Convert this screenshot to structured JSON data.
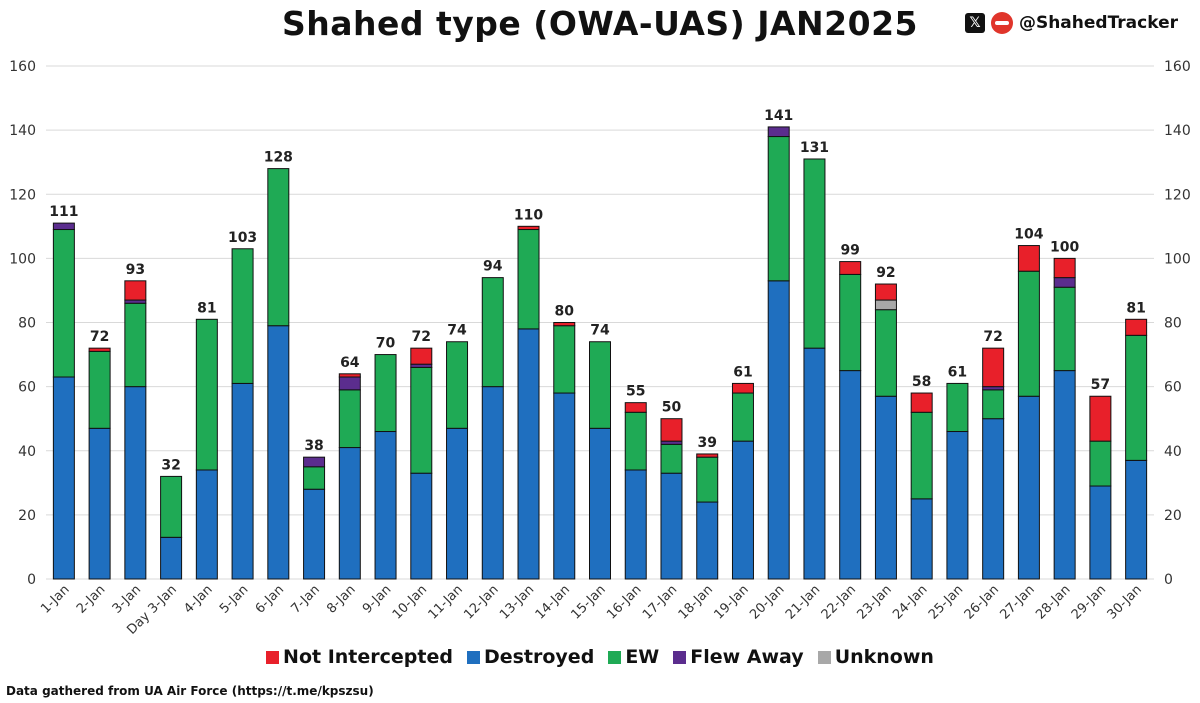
{
  "header": {
    "title": "Shahed type (OWA-UAS) JAN2025",
    "handle": "@ShahedTracker",
    "x_icon_glyph": "𝕏"
  },
  "source": "Data gathered from UA Air Force (https://t.me/kpszsu)",
  "chart_data": {
    "type": "bar",
    "stacked": true,
    "title": "Shahed type (OWA-UAS) JAN2025",
    "xlabel": "",
    "ylabel": "",
    "ylim": [
      0,
      160
    ],
    "yticks": [
      0,
      20,
      40,
      60,
      80,
      100,
      120,
      140,
      160
    ],
    "grid": true,
    "legend_position": "bottom",
    "categories": [
      "1-Jan",
      "2-Jan",
      "3-Jan",
      "Day 3-Jan",
      "4-Jan",
      "5-Jan",
      "6-Jan",
      "7-Jan",
      "8-Jan",
      "9-Jan",
      "10-Jan",
      "11-Jan",
      "12-Jan",
      "13-Jan",
      "14-Jan",
      "15-Jan",
      "16-Jan",
      "17-Jan",
      "18-Jan",
      "19-Jan",
      "20-Jan",
      "21-Jan",
      "22-Jan",
      "23-Jan",
      "24-Jan",
      "25-Jan",
      "26-Jan",
      "27-Jan",
      "28-Jan",
      "29-Jan",
      "30-Jan"
    ],
    "totals": [
      111,
      72,
      93,
      32,
      81,
      103,
      128,
      38,
      64,
      70,
      72,
      74,
      94,
      110,
      80,
      74,
      55,
      50,
      39,
      61,
      141,
      131,
      99,
      92,
      58,
      61,
      72,
      104,
      100,
      57,
      81
    ],
    "series": [
      {
        "name": "Destroyed",
        "color": "#1f6fbf",
        "values": [
          63,
          47,
          60,
          13,
          34,
          61,
          79,
          28,
          41,
          46,
          33,
          47,
          60,
          78,
          58,
          47,
          34,
          33,
          24,
          43,
          93,
          72,
          65,
          57,
          25,
          46,
          50,
          57,
          65,
          29,
          37
        ]
      },
      {
        "name": "EW",
        "color": "#1faa55",
        "values": [
          46,
          24,
          26,
          19,
          47,
          42,
          49,
          7,
          18,
          24,
          33,
          27,
          34,
          31,
          21,
          27,
          18,
          9,
          14,
          15,
          45,
          59,
          30,
          27,
          27,
          15,
          9,
          39,
          26,
          14,
          39
        ]
      },
      {
        "name": "Unknown",
        "color": "#a8a8a8",
        "values": [
          0,
          0,
          0,
          0,
          0,
          0,
          0,
          0,
          0,
          0,
          0,
          0,
          0,
          0,
          0,
          0,
          0,
          0,
          0,
          0,
          0,
          0,
          0,
          3,
          0,
          0,
          0,
          0,
          0,
          0,
          0
        ]
      },
      {
        "name": "Flew Away",
        "color": "#5b2d8e",
        "values": [
          2,
          0,
          1,
          0,
          0,
          0,
          0,
          3,
          4,
          0,
          1,
          0,
          0,
          0,
          0,
          0,
          0,
          1,
          0,
          0,
          3,
          0,
          0,
          0,
          0,
          0,
          1,
          0,
          3,
          0,
          0
        ]
      },
      {
        "name": "Not Intercepted",
        "color": "#e8202a",
        "values": [
          0,
          1,
          6,
          0,
          0,
          0,
          0,
          0,
          1,
          0,
          5,
          0,
          0,
          1,
          1,
          0,
          3,
          7,
          1,
          3,
          0,
          0,
          4,
          5,
          6,
          0,
          12,
          8,
          6,
          14,
          5
        ]
      }
    ]
  },
  "legend": [
    {
      "label": "Not Intercepted",
      "color": "#e8202a"
    },
    {
      "label": "Destroyed",
      "color": "#1f6fbf"
    },
    {
      "label": "EW",
      "color": "#1faa55"
    },
    {
      "label": "Flew Away",
      "color": "#5b2d8e"
    },
    {
      "label": "Unknown",
      "color": "#a8a8a8"
    }
  ]
}
